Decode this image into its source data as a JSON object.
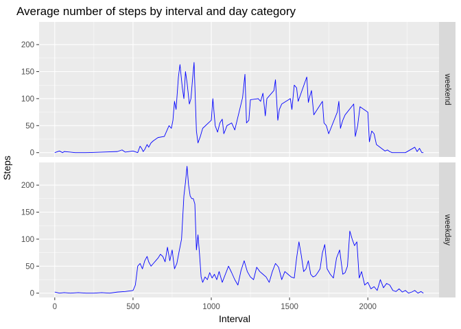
{
  "chart_data": {
    "type": "line",
    "title": "Average number of steps by interval and day category",
    "xlabel": "Interval",
    "ylabel": "Steps",
    "xlim": [
      -100,
      2455
    ],
    "ylim": [
      -8,
      242
    ],
    "xticks": [
      0,
      500,
      1000,
      1500,
      2000
    ],
    "yticks": [
      0,
      50,
      100,
      150,
      200
    ],
    "grid": true,
    "line_color": "#0000ff",
    "panel_background": "#ebebeb",
    "strip_background": "#d9d9d9",
    "facets": [
      {
        "label": "weekend",
        "x": [
          0,
          30,
          50,
          60,
          100,
          130,
          200,
          300,
          400,
          430,
          450,
          500,
          530,
          545,
          555,
          565,
          575,
          590,
          600,
          615,
          630,
          645,
          660,
          700,
          730,
          745,
          755,
          765,
          775,
          790,
          800,
          815,
          825,
          835,
          845,
          860,
          870,
          880,
          890,
          905,
          915,
          930,
          945,
          1000,
          1010,
          1025,
          1040,
          1055,
          1070,
          1080,
          1090,
          1100,
          1130,
          1150,
          1200,
          1215,
          1225,
          1240,
          1250,
          1300,
          1315,
          1330,
          1345,
          1355,
          1400,
          1410,
          1425,
          1435,
          1450,
          1505,
          1515,
          1530,
          1545,
          1555,
          1610,
          1620,
          1630,
          1640,
          1655,
          1710,
          1720,
          1735,
          1750,
          1805,
          1815,
          1825,
          1840,
          1855,
          1910,
          1920,
          1935,
          1950,
          2000,
          2010,
          2025,
          2040,
          2055,
          2110,
          2125,
          2140,
          2155,
          2210,
          2225,
          2240,
          2300,
          2315,
          2330,
          2345,
          2355
        ],
        "y": [
          0,
          3,
          0,
          2,
          1,
          0,
          0,
          1,
          2,
          5,
          1,
          3,
          0,
          12,
          8,
          2,
          6,
          15,
          10,
          18,
          22,
          25,
          28,
          30,
          50,
          45,
          60,
          95,
          80,
          140,
          163,
          120,
          100,
          150,
          130,
          90,
          100,
          135,
          167,
          40,
          18,
          30,
          45,
          60,
          100,
          50,
          38,
          55,
          62,
          35,
          42,
          50,
          55,
          42,
          102,
          145,
          55,
          60,
          98,
          100,
          95,
          110,
          68,
          100,
          115,
          135,
          60,
          80,
          90,
          100,
          80,
          125,
          120,
          95,
          140,
          93,
          105,
          115,
          70,
          95,
          55,
          50,
          35,
          75,
          95,
          45,
          60,
          70,
          90,
          30,
          50,
          85,
          75,
          20,
          40,
          35,
          15,
          3,
          5,
          2,
          0,
          0,
          0,
          0,
          10,
          2,
          8,
          0,
          0
        ]
      },
      {
        "label": "weekday",
        "x": [
          0,
          30,
          60,
          100,
          150,
          200,
          250,
          300,
          350,
          400,
          450,
          500,
          515,
          530,
          545,
          560,
          575,
          590,
          600,
          615,
          630,
          645,
          660,
          675,
          690,
          705,
          720,
          735,
          750,
          765,
          780,
          795,
          810,
          825,
          835,
          845,
          855,
          865,
          875,
          885,
          895,
          905,
          915,
          925,
          935,
          945,
          960,
          975,
          990,
          1005,
          1020,
          1035,
          1050,
          1070,
          1090,
          1110,
          1130,
          1150,
          1170,
          1190,
          1210,
          1230,
          1250,
          1270,
          1290,
          1310,
          1330,
          1350,
          1370,
          1390,
          1410,
          1430,
          1450,
          1470,
          1490,
          1510,
          1530,
          1545,
          1560,
          1575,
          1590,
          1605,
          1620,
          1635,
          1650,
          1665,
          1680,
          1695,
          1710,
          1725,
          1740,
          1760,
          1780,
          1800,
          1820,
          1840,
          1855,
          1870,
          1885,
          1900,
          1915,
          1930,
          1945,
          1960,
          1980,
          2000,
          2020,
          2040,
          2060,
          2080,
          2100,
          2120,
          2140,
          2160,
          2180,
          2200,
          2220,
          2240,
          2260,
          2280,
          2300,
          2320,
          2340,
          2355
        ],
        "y": [
          2,
          0,
          1,
          0,
          1,
          0,
          0,
          1,
          0,
          2,
          3,
          5,
          15,
          50,
          55,
          45,
          60,
          68,
          58,
          50,
          55,
          60,
          65,
          72,
          68,
          58,
          85,
          60,
          80,
          45,
          55,
          78,
          100,
          180,
          205,
          235,
          200,
          180,
          175,
          175,
          165,
          80,
          108,
          72,
          30,
          20,
          30,
          25,
          38,
          28,
          35,
          25,
          40,
          20,
          35,
          50,
          38,
          25,
          15,
          42,
          60,
          40,
          30,
          25,
          48,
          40,
          35,
          30,
          20,
          40,
          55,
          48,
          25,
          40,
          35,
          30,
          28,
          65,
          95,
          70,
          40,
          45,
          60,
          35,
          30,
          32,
          38,
          45,
          75,
          90,
          45,
          35,
          28,
          65,
          80,
          35,
          38,
          50,
          115,
          100,
          88,
          95,
          28,
          40,
          15,
          20,
          8,
          12,
          5,
          25,
          10,
          18,
          15,
          5,
          3,
          8,
          2,
          5,
          0,
          2,
          5,
          0,
          3,
          0
        ]
      }
    ]
  }
}
